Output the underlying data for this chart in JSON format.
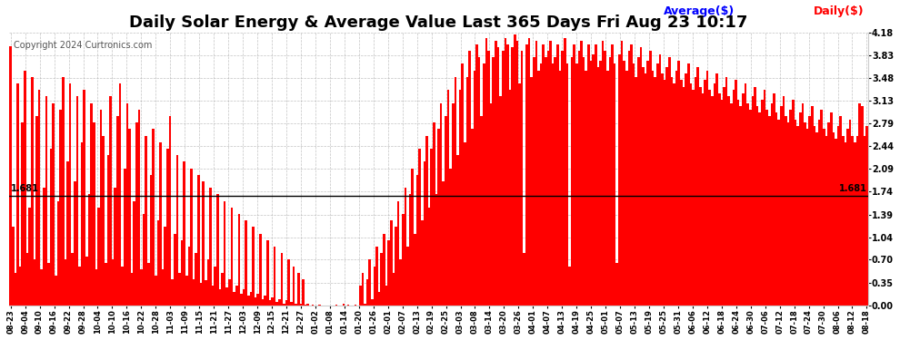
{
  "title": "Daily Solar Energy & Average Value Last 365 Days Fri Aug 23 10:17",
  "copyright": "Copyright 2024 Curtronics.com",
  "legend_average": "Average($)",
  "legend_daily": "Daily($)",
  "ylim": [
    0.0,
    4.18
  ],
  "yticks": [
    0.0,
    0.35,
    0.7,
    1.04,
    1.39,
    1.74,
    2.09,
    2.44,
    2.79,
    3.13,
    3.48,
    3.83,
    4.18
  ],
  "average_line": 1.681,
  "bar_color": "#ff0000",
  "average_line_color": "#000000",
  "background_color": "#ffffff",
  "grid_color": "#aaaaaa",
  "title_fontsize": 13,
  "tick_fontsize": 7,
  "avg_label_color": "#0000ff",
  "daily_label_color": "#ff0000",
  "x_labels": [
    "08-23",
    "09-04",
    "09-10",
    "09-16",
    "09-22",
    "09-28",
    "10-04",
    "10-10",
    "10-16",
    "10-22",
    "10-28",
    "11-03",
    "11-09",
    "11-15",
    "11-21",
    "11-27",
    "12-03",
    "12-09",
    "12-15",
    "12-21",
    "12-27",
    "01-02",
    "01-08",
    "01-14",
    "01-20",
    "01-26",
    "02-01",
    "02-07",
    "02-13",
    "02-19",
    "02-25",
    "03-03",
    "03-08",
    "03-14",
    "03-20",
    "03-26",
    "04-01",
    "04-07",
    "04-13",
    "04-19",
    "04-25",
    "05-01",
    "05-07",
    "05-13",
    "05-19",
    "05-25",
    "05-31",
    "06-06",
    "06-12",
    "06-18",
    "06-24",
    "06-30",
    "07-06",
    "07-12",
    "07-18",
    "07-24",
    "07-30",
    "08-06",
    "08-12",
    "08-18"
  ],
  "values": [
    3.97,
    1.2,
    0.5,
    3.4,
    0.6,
    2.8,
    3.6,
    0.8,
    1.5,
    3.5,
    0.7,
    2.9,
    3.3,
    0.55,
    1.8,
    3.2,
    0.65,
    2.4,
    3.1,
    0.45,
    1.6,
    3.0,
    3.5,
    0.7,
    2.2,
    3.4,
    0.8,
    1.9,
    3.2,
    0.6,
    2.5,
    3.3,
    0.75,
    1.7,
    3.1,
    2.8,
    0.55,
    1.5,
    3.0,
    2.6,
    0.65,
    2.3,
    3.2,
    0.7,
    1.8,
    2.9,
    3.4,
    0.6,
    2.1,
    3.1,
    2.7,
    0.5,
    1.6,
    2.8,
    3.0,
    0.55,
    1.4,
    2.6,
    0.65,
    2.0,
    2.7,
    0.45,
    1.3,
    2.5,
    0.55,
    1.2,
    2.4,
    2.9,
    0.4,
    1.1,
    2.3,
    0.5,
    1.0,
    2.2,
    0.45,
    0.9,
    2.1,
    0.4,
    0.8,
    2.0,
    0.35,
    1.9,
    0.38,
    0.7,
    1.8,
    0.3,
    0.6,
    1.7,
    0.25,
    0.5,
    1.6,
    0.28,
    0.4,
    1.5,
    0.2,
    0.3,
    1.4,
    0.18,
    0.25,
    1.3,
    0.15,
    0.2,
    1.2,
    0.12,
    0.18,
    1.1,
    0.1,
    0.15,
    1.0,
    0.08,
    0.12,
    0.9,
    0.05,
    0.1,
    0.8,
    0.03,
    0.08,
    0.7,
    0.05,
    0.6,
    0.03,
    0.5,
    0.02,
    0.4,
    0.01,
    0.02,
    0.0,
    0.01,
    0.0,
    0.0,
    0.01,
    0.0,
    0.0,
    0.0,
    0.0,
    0.0,
    0.0,
    0.01,
    0.0,
    0.0,
    0.02,
    0.0,
    0.01,
    0.0,
    0.0,
    0.01,
    0.0,
    0.3,
    0.5,
    0.02,
    0.4,
    0.7,
    0.1,
    0.6,
    0.9,
    0.2,
    0.8,
    1.1,
    0.3,
    1.0,
    1.3,
    0.5,
    1.2,
    1.6,
    0.7,
    1.4,
    1.8,
    0.9,
    1.7,
    2.1,
    1.1,
    2.0,
    2.4,
    1.3,
    2.2,
    2.6,
    1.5,
    2.4,
    2.8,
    1.7,
    2.7,
    3.1,
    1.9,
    2.9,
    3.3,
    2.1,
    3.1,
    3.5,
    2.3,
    3.3,
    3.7,
    2.5,
    3.5,
    3.9,
    2.7,
    3.6,
    4.0,
    3.8,
    2.9,
    3.7,
    4.1,
    3.9,
    3.1,
    3.8,
    4.05,
    3.95,
    3.2,
    3.9,
    4.1,
    4.0,
    3.3,
    3.95,
    4.15,
    4.05,
    3.4,
    3.9,
    0.8,
    4.0,
    4.1,
    3.5,
    3.8,
    4.05,
    3.6,
    3.7,
    4.0,
    3.8,
    3.9,
    4.05,
    3.7,
    3.8,
    4.0,
    3.6,
    3.9,
    4.1,
    3.7,
    0.6,
    3.8,
    4.0,
    3.7,
    3.9,
    4.05,
    3.8,
    3.6,
    4.0,
    3.75,
    3.85,
    4.0,
    3.65,
    3.75,
    4.05,
    3.9,
    3.6,
    3.8,
    4.0,
    3.7,
    0.65,
    3.85,
    4.05,
    3.75,
    3.6,
    3.9,
    4.0,
    3.7,
    3.5,
    3.8,
    3.95,
    3.65,
    3.55,
    3.75,
    3.9,
    3.6,
    3.5,
    3.7,
    3.85,
    3.55,
    3.45,
    3.65,
    3.8,
    3.5,
    3.4,
    3.6,
    3.75,
    3.45,
    3.35,
    3.55,
    3.7,
    3.4,
    3.3,
    3.5,
    3.65,
    3.35,
    3.25,
    3.45,
    3.6,
    3.3,
    3.2,
    3.4,
    3.55,
    3.25,
    3.15,
    3.35,
    3.5,
    3.2,
    3.1,
    3.3,
    3.45,
    3.15,
    3.05,
    3.25,
    3.4,
    3.1,
    3.0,
    3.2,
    3.35,
    3.05,
    2.95,
    3.15,
    3.3,
    3.0,
    2.9,
    3.1,
    3.25,
    2.95,
    2.85,
    3.05,
    3.2,
    2.9,
    2.8,
    3.0,
    3.15,
    2.85,
    2.75,
    2.95,
    3.1,
    2.8,
    2.7,
    2.9,
    3.05,
    2.75,
    2.65,
    2.85,
    3.0,
    2.7,
    2.6,
    2.8,
    2.95,
    2.65,
    2.55,
    2.75,
    2.9,
    2.6,
    2.5,
    2.7,
    2.85,
    2.6,
    2.5,
    2.6,
    3.1,
    3.05,
    2.6,
    2.75
  ]
}
